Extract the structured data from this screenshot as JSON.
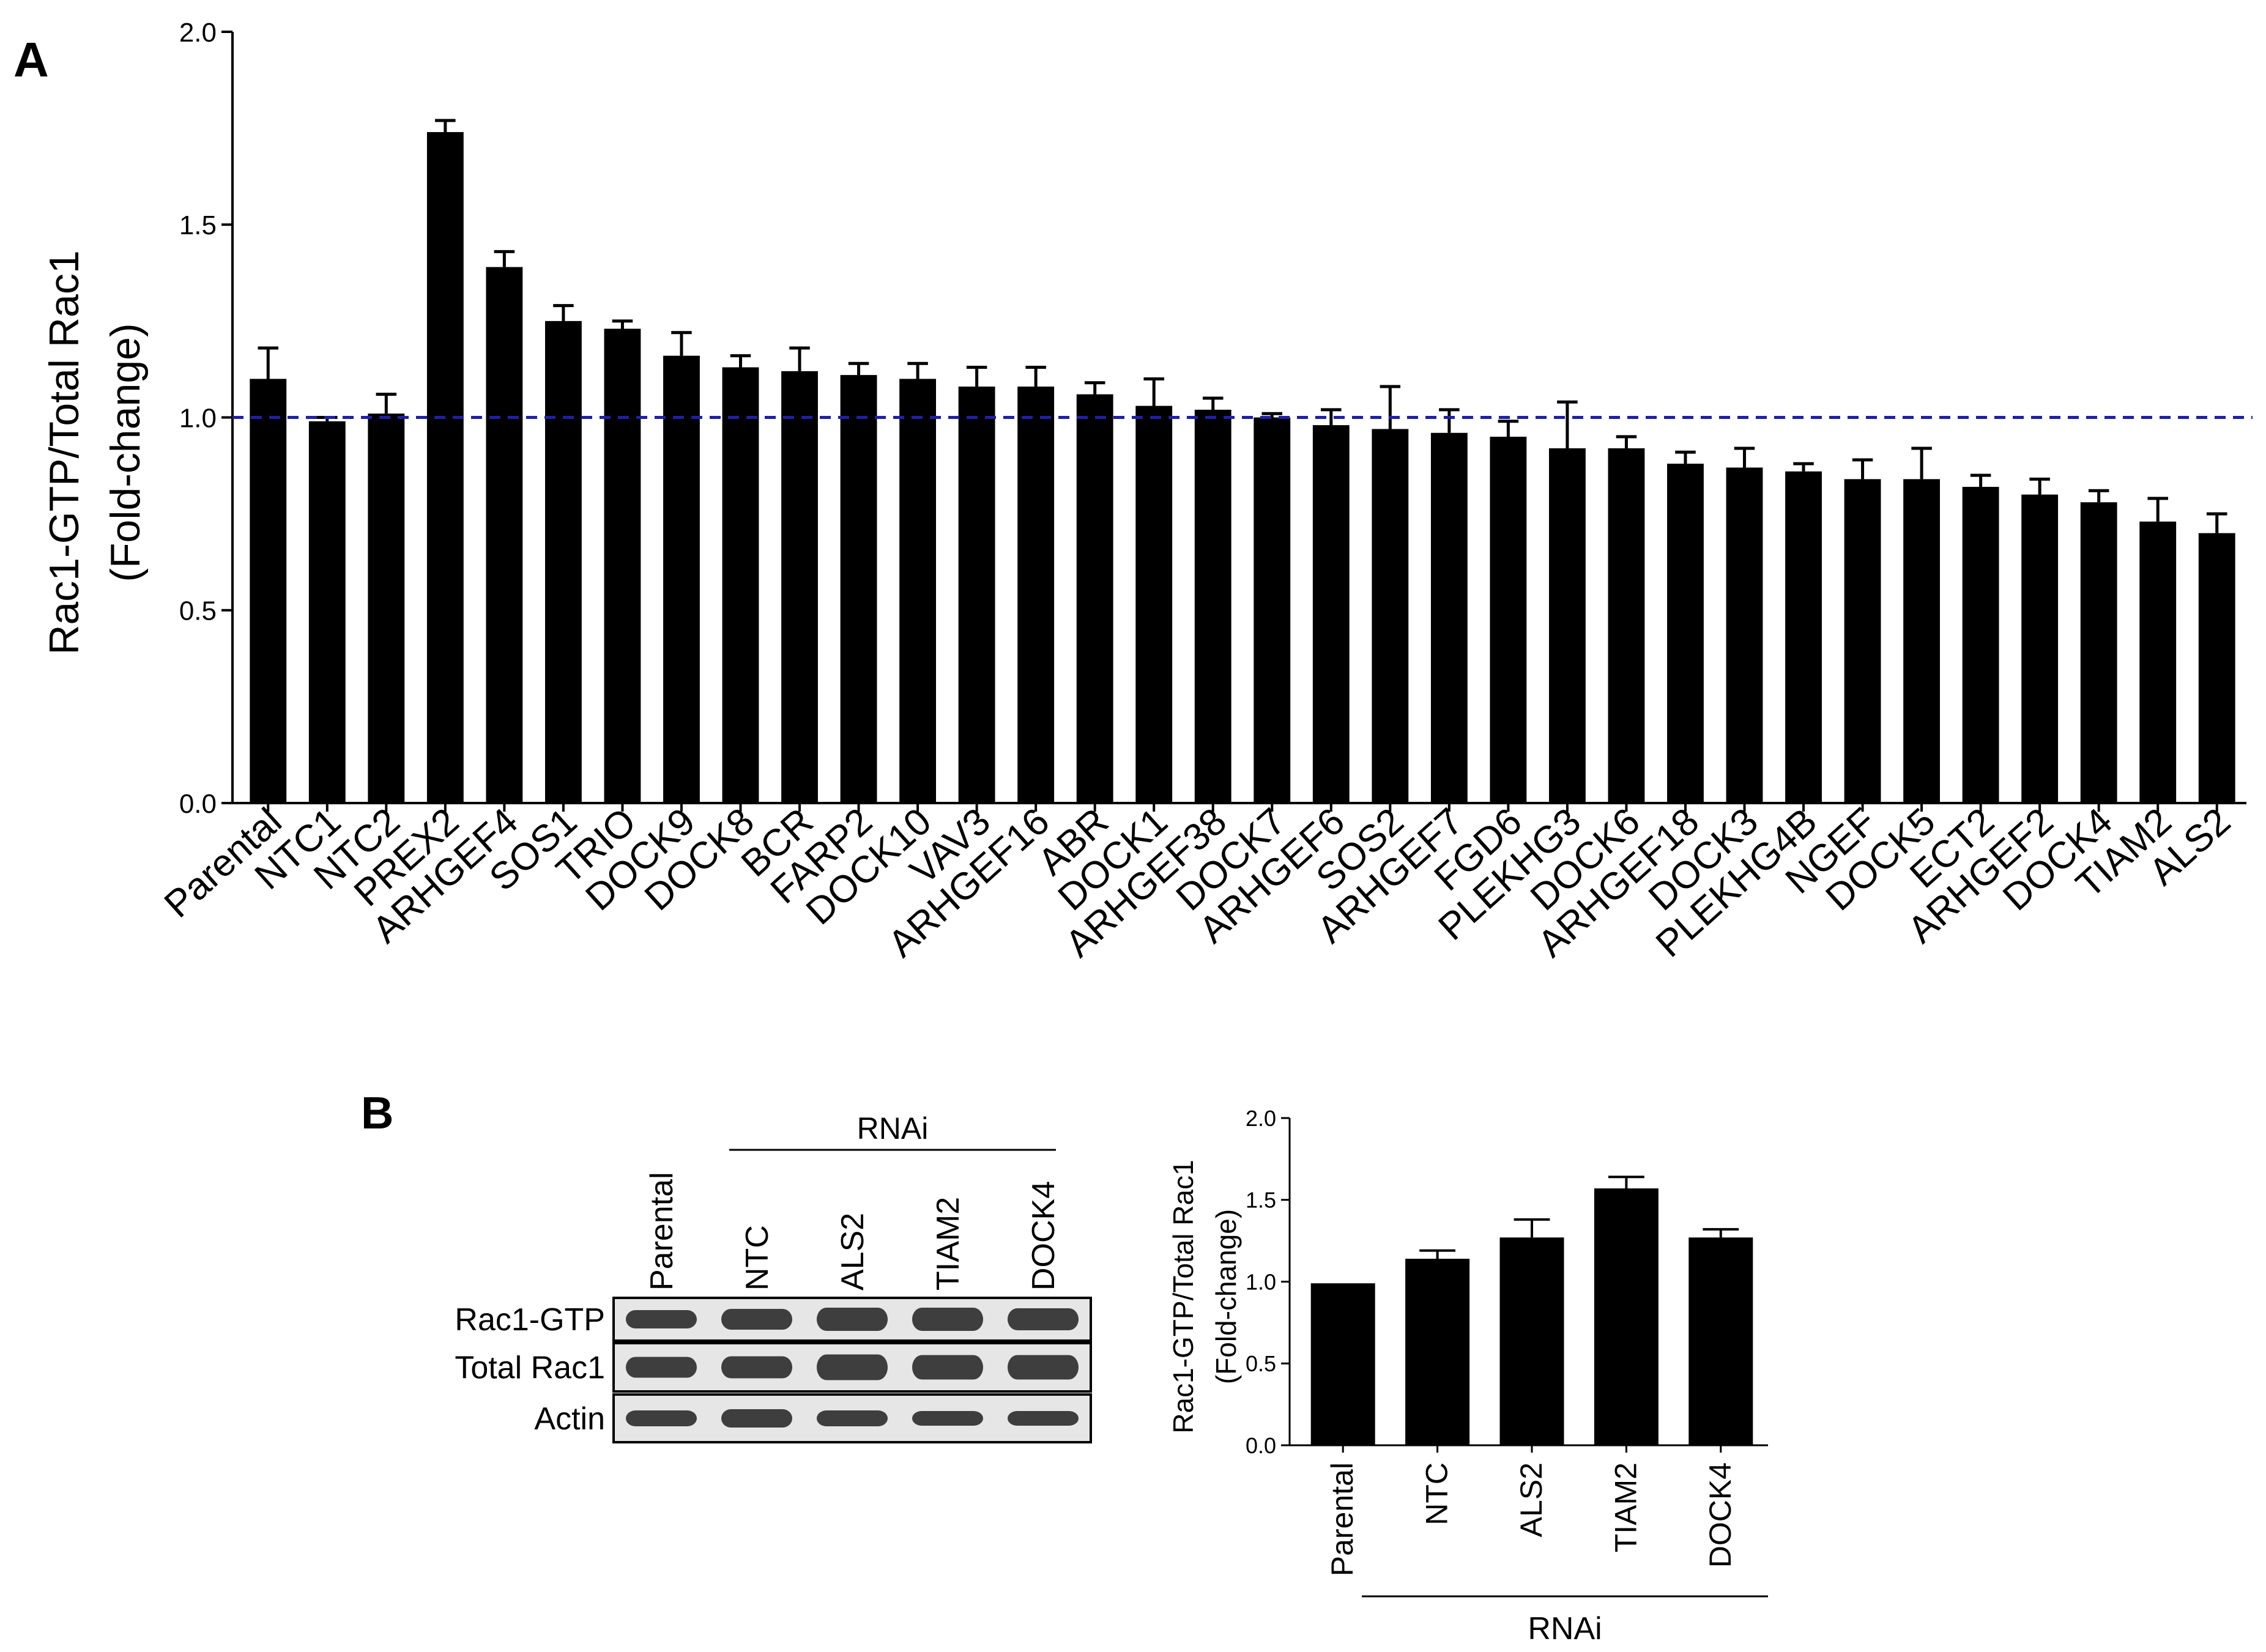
{
  "panels": {
    "a": {
      "letter": "A"
    },
    "b": {
      "letter": "B"
    }
  },
  "colors": {
    "bar": "#000000",
    "reference_line": "#1f1fa8",
    "blot_bg": "#e6e6e6",
    "band": "#2b2b2b"
  },
  "blot": {
    "group_label": "RNAi",
    "lanes": [
      "Parental",
      "NTC",
      "ALS2",
      "TIAM2",
      "DOCK4"
    ],
    "rows": [
      "Rac1-GTP",
      "Total Rac1",
      "Actin"
    ]
  },
  "chart_data": [
    {
      "id": "panel-a",
      "type": "bar",
      "title": "",
      "xlabel": "",
      "ylabel": [
        "Rac1-GTP/Total Rac1",
        "(Fold-change)"
      ],
      "ylim": [
        0,
        2.0
      ],
      "yticks": [
        0.0,
        0.5,
        1.0,
        1.5,
        2.0
      ],
      "ytick_labels": [
        "0.0",
        "0.5",
        "1.0",
        "1.5",
        "2.0"
      ],
      "reference_line": 1.0,
      "categories": [
        "Parental",
        "NTC1",
        "NTC2",
        "PREX2",
        "ARHGEF4",
        "SOS1",
        "TRIO",
        "DOCK9",
        "DOCK8",
        "BCR",
        "FARP2",
        "DOCK10",
        "VAV3",
        "ARHGEF16",
        "ABR",
        "DOCK1",
        "ARHGEF38",
        "DOCK7",
        "ARHGEF6",
        "SOS2",
        "ARHGEF7",
        "FGD6",
        "PLEKHG3",
        "DOCK6",
        "ARHGEF18",
        "DOCK3",
        "PLEKHG4B",
        "NGEF",
        "DOCK5",
        "ECT2",
        "ARHGEF2",
        "DOCK4",
        "TIAM2",
        "ALS2"
      ],
      "values": [
        1.1,
        0.99,
        1.01,
        1.74,
        1.39,
        1.25,
        1.23,
        1.16,
        1.13,
        1.12,
        1.11,
        1.1,
        1.08,
        1.08,
        1.06,
        1.03,
        1.02,
        1.0,
        0.98,
        0.97,
        0.96,
        0.95,
        0.92,
        0.92,
        0.88,
        0.87,
        0.86,
        0.84,
        0.84,
        0.82,
        0.8,
        0.78,
        0.73,
        0.7
      ],
      "errors": [
        0.08,
        0.01,
        0.05,
        0.03,
        0.04,
        0.04,
        0.02,
        0.06,
        0.03,
        0.06,
        0.03,
        0.04,
        0.05,
        0.05,
        0.03,
        0.07,
        0.03,
        0.01,
        0.04,
        0.11,
        0.06,
        0.04,
        0.12,
        0.03,
        0.03,
        0.05,
        0.02,
        0.05,
        0.08,
        0.03,
        0.04,
        0.03,
        0.06,
        0.05
      ]
    },
    {
      "id": "panel-b",
      "type": "bar",
      "title": "",
      "xlabel": "",
      "ylabel": [
        "Rac1-GTP/Total Rac1",
        "(Fold-change)"
      ],
      "ylim": [
        0,
        2.0
      ],
      "yticks": [
        0.0,
        0.5,
        1.0,
        1.5,
        2.0
      ],
      "ytick_labels": [
        "0.0",
        "0.5",
        "1.0",
        "1.5",
        "2.0"
      ],
      "group_label": "RNAi",
      "categories": [
        "Parental",
        "NTC",
        "ALS2",
        "TIAM2",
        "DOCK4"
      ],
      "values": [
        0.99,
        1.14,
        1.27,
        1.57,
        1.27
      ],
      "errors": [
        0.0,
        0.05,
        0.11,
        0.07,
        0.05
      ]
    }
  ]
}
